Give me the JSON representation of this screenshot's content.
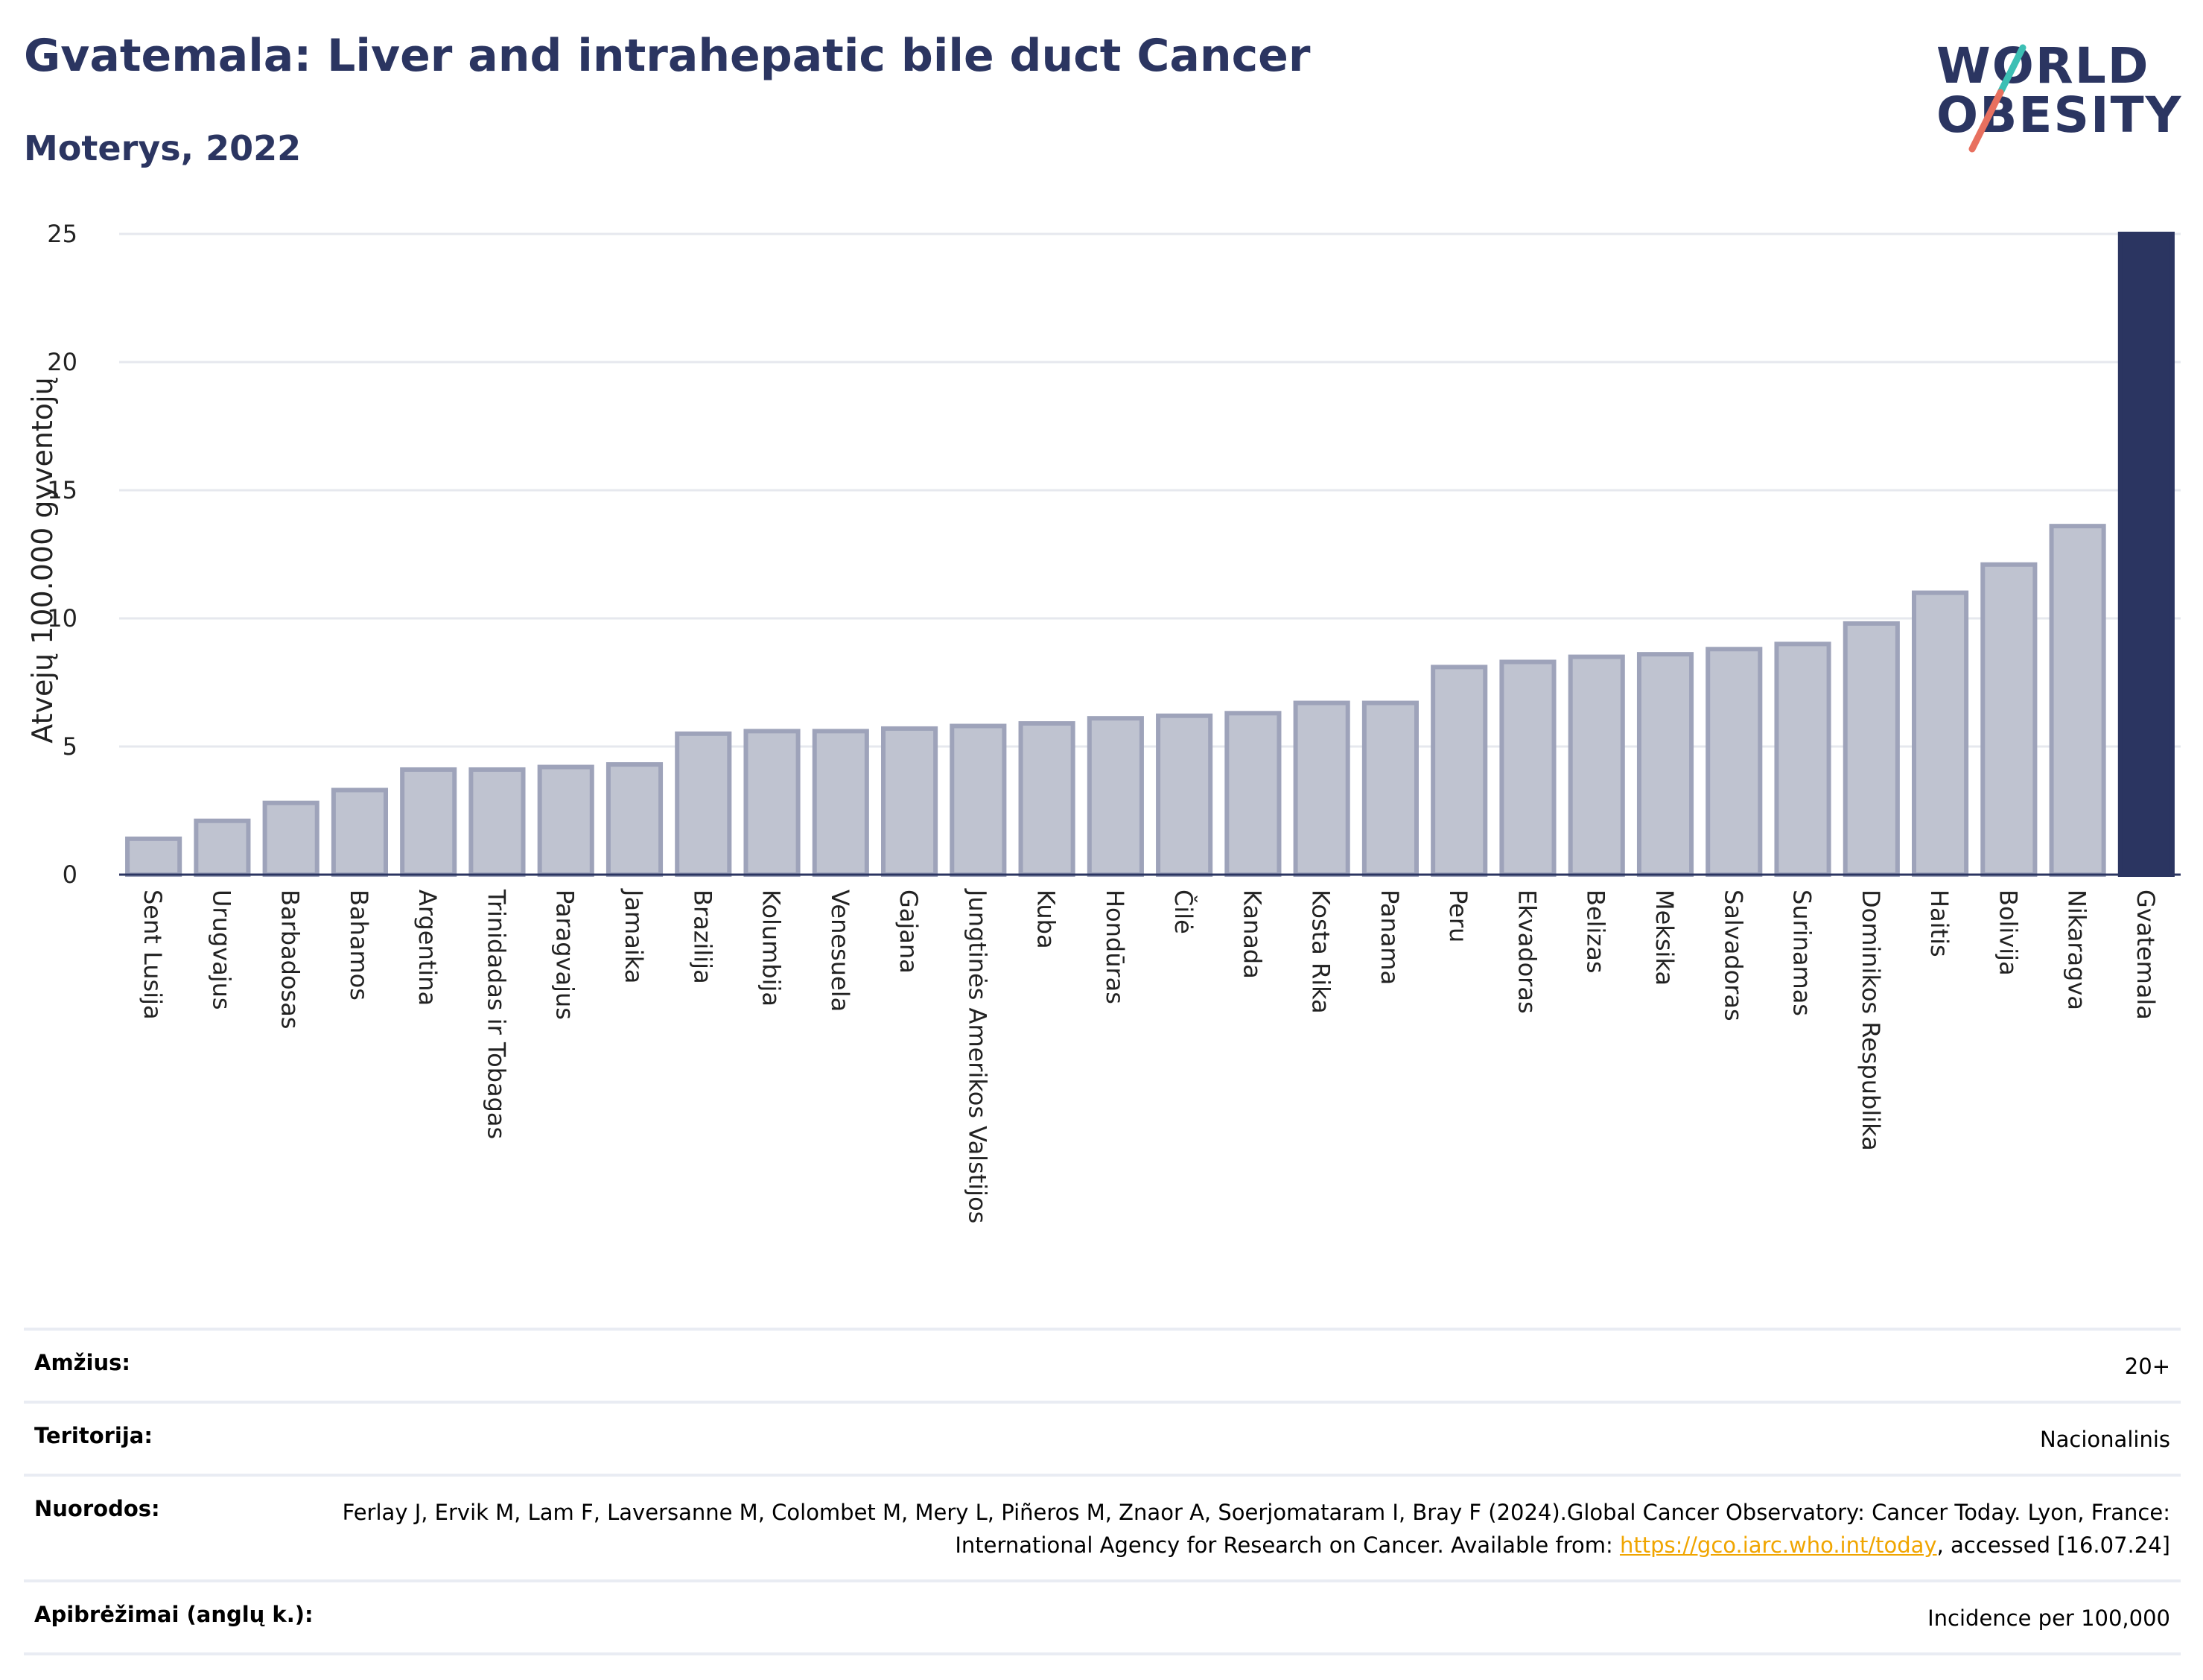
{
  "header": {
    "title": "Gvatemala: Liver and intrahepatic bile duct Cancer",
    "subtitle": "Moterys, 2022"
  },
  "logo": {
    "line1": "WORLD",
    "line2": "OBESITY",
    "slash_colors": [
      "#3cbfb4",
      "#e8705f"
    ]
  },
  "chart_data": {
    "type": "bar",
    "ylabel": "Atvejų 100.000 gyventojų",
    "ylim": [
      0,
      25
    ],
    "yticks": [
      0,
      5,
      10,
      15,
      20,
      25
    ],
    "grid": true,
    "categories": [
      "Sent Lusija",
      "Urugvajus",
      "Barbadosas",
      "Bahamos",
      "Argentina",
      "Trinidadas ir Tobagas",
      "Paragvajus",
      "Jamaika",
      "Brazilija",
      "Kolumbija",
      "Venesuela",
      "Gajana",
      "Jungtinės Amerikos Valstijos",
      "Kuba",
      "Hondūras",
      "Čilė",
      "Kanada",
      "Kosta Rika",
      "Panama",
      "Peru",
      "Ekvadoras",
      "Belizas",
      "Meksika",
      "Salvadoras",
      "Surinamas",
      "Dominikos Respublika",
      "Haitis",
      "Bolivija",
      "Nikaragva",
      "Gvatemala"
    ],
    "values": [
      1.4,
      2.1,
      2.8,
      3.3,
      4.1,
      4.1,
      4.2,
      4.3,
      5.5,
      5.6,
      5.6,
      5.7,
      5.8,
      5.9,
      6.1,
      6.2,
      6.3,
      6.7,
      6.7,
      8.1,
      8.3,
      8.5,
      8.6,
      8.8,
      9.0,
      9.8,
      11.0,
      12.1,
      13.6,
      25.0
    ],
    "highlight": "Gvatemala",
    "colors": {
      "bar_fill": "#bfc3d0",
      "bar_stroke": "#9ea3ba",
      "highlight_fill": "#2b3561",
      "grid": "#e6e8ee",
      "axis": "#2b3561"
    }
  },
  "meta": {
    "age_label": "Amžius:",
    "age_value": "20+",
    "territory_label": "Teritorija:",
    "territory_value": "Nacionalinis",
    "refs_label": "Nuorodos:",
    "refs_text": "Ferlay J, Ervik M, Lam F, Laversanne M, Colombet M, Mery L, Piñeros M, Znaor A, Soerjomataram I, Bray F (2024).Global Cancer Observatory: Cancer Today. Lyon, France: International Agency for Research on Cancer. Available from: ",
    "refs_link": "https://gco.iarc.who.int/today",
    "refs_tail": ", accessed [16.07.24]",
    "definitions_label": "Apibrėžimai (anglų k.):",
    "definitions_value": "Incidence per 100,000"
  }
}
